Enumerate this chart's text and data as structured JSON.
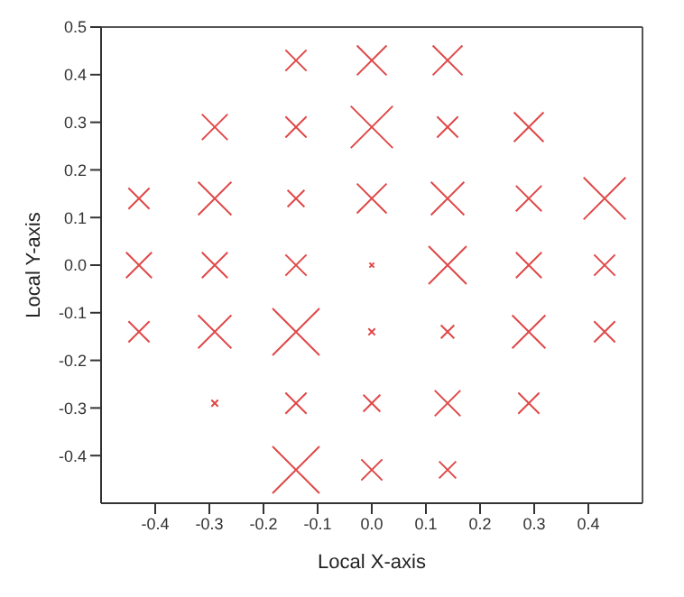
{
  "chart_data": {
    "type": "bubble",
    "xlabel": "Local X-axis",
    "ylabel": "Local Y-axis",
    "color": "#e04848",
    "marker": "cross",
    "x": [
      -0.14,
      0,
      0.14,
      -0.29,
      -0.14,
      0,
      0.14,
      0.29,
      -0.43,
      -0.29,
      -0.14,
      0,
      0.14,
      0.29,
      0.43,
      -0.43,
      -0.29,
      -0.14,
      0,
      0.14,
      0.29,
      0.43,
      -0.43,
      -0.29,
      -0.14,
      0,
      0.14,
      0.29,
      0.43,
      -0.29,
      -0.14,
      0,
      0.14,
      0.29,
      -0.14,
      0,
      0.14
    ],
    "values": [
      0.43,
      0.43,
      0.43,
      0.29,
      0.29,
      0.29,
      0.29,
      0.29,
      0.14,
      0.14,
      0.14,
      0.14,
      0.14,
      0.14,
      0.14,
      0,
      0,
      0,
      0,
      0,
      0,
      0,
      -0.14,
      -0.14,
      -0.14,
      -0.14,
      -0.14,
      -0.14,
      -0.14,
      -0.29,
      -0.29,
      -0.29,
      -0.29,
      -0.29,
      -0.43,
      -0.43,
      -0.43
    ],
    "sizes": [
      0.2,
      0.4,
      0.4,
      0.3,
      0.2,
      0.8,
      0.2,
      0.4,
      0.2,
      0.5,
      0.13,
      0.4,
      0.5,
      0.3,
      0.8,
      0.3,
      0.3,
      0.2,
      0.01,
      0.65,
      0.3,
      0.2,
      0.2,
      0.5,
      1,
      0.02,
      0.08,
      0.5,
      0.2,
      0.02,
      0.2,
      0.13,
      0.3,
      0.2,
      1,
      0.2,
      0.13
    ],
    "xlim": [
      -0.5,
      0.5
    ],
    "ylim": [
      -0.5,
      0.5
    ],
    "xticks": [
      -0.4,
      -0.3,
      -0.2,
      -0.1,
      {
        "value": 0,
        "label": "0.0"
      },
      0.1,
      0.2,
      0.3,
      0.4
    ],
    "yticks": [
      -0.4,
      -0.3,
      -0.2,
      -0.1,
      {
        "value": 0,
        "label": "0.0"
      },
      0.1,
      0.2,
      0.3,
      0.4,
      0.5
    ]
  }
}
